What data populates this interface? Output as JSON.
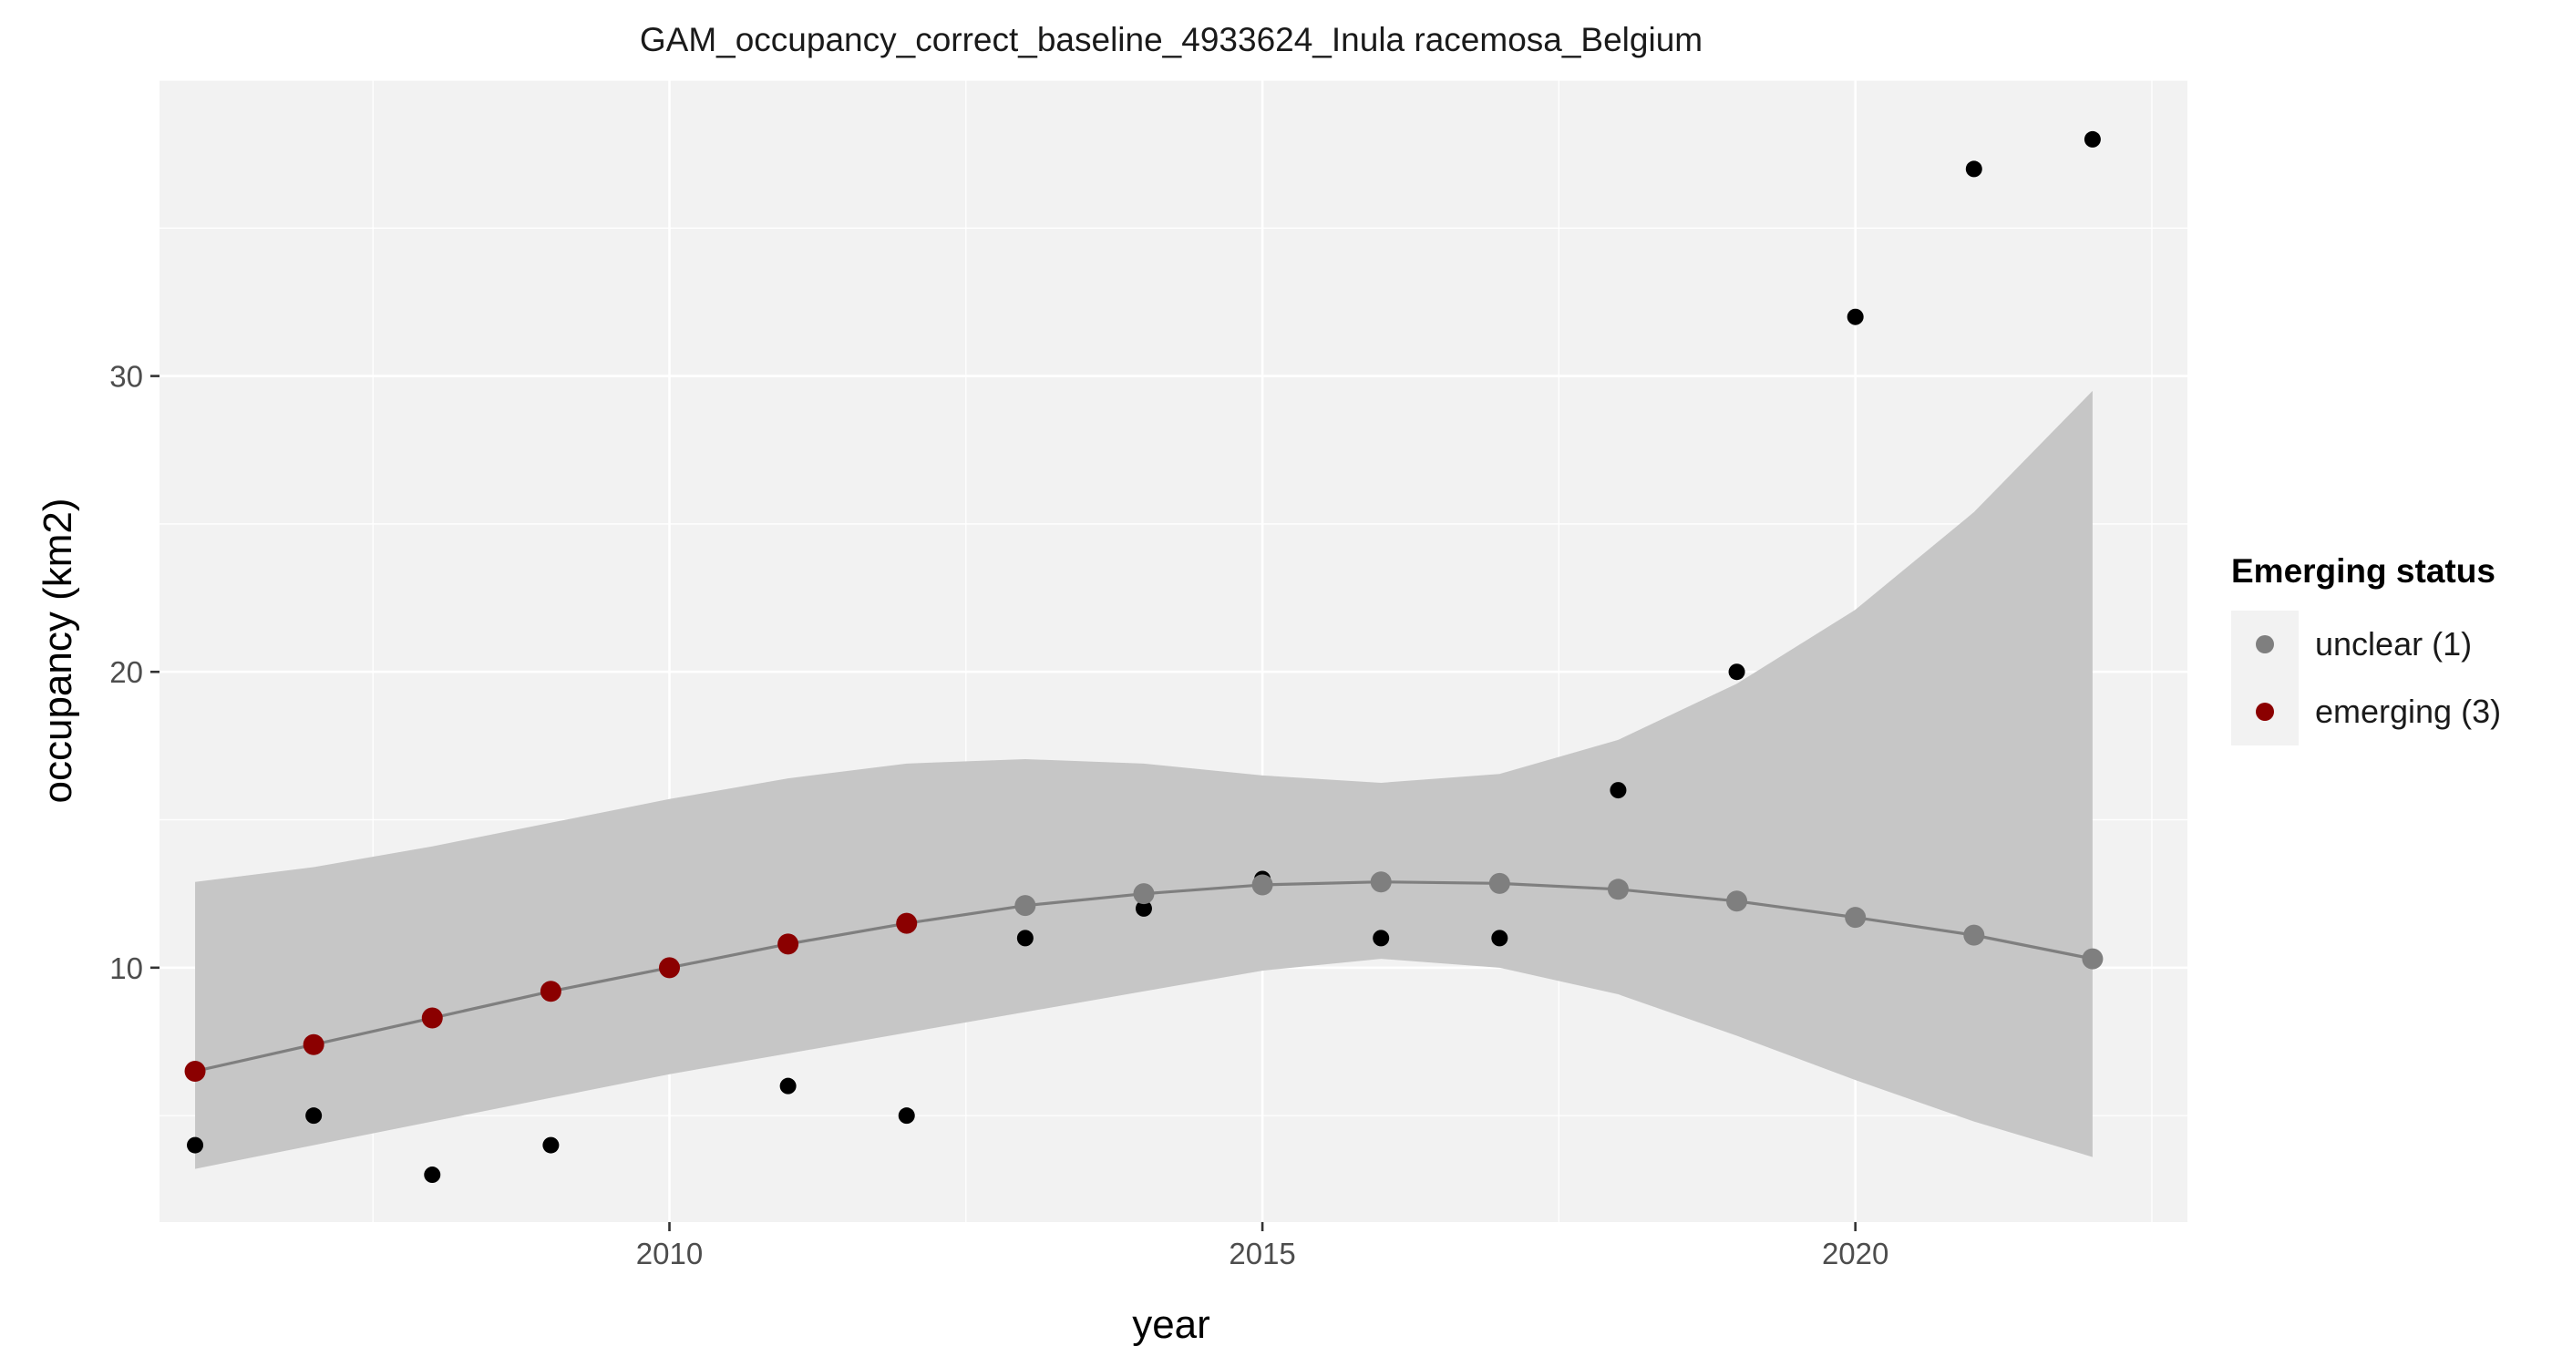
{
  "chart_data": {
    "type": "scatter",
    "title": "GAM_occupancy_correct_baseline_4933624_Inula racemosa_Belgium",
    "xlabel": "year",
    "ylabel": "occupancy (km2)",
    "xlim": [
      2005.7,
      2022.8
    ],
    "ylim": [
      1.4,
      40.0
    ],
    "x_ticks": [
      2010,
      2015,
      2020
    ],
    "x_tick_labels": [
      "2010",
      "2015",
      "2020"
    ],
    "y_ticks": [
      10,
      20,
      30
    ],
    "y_tick_labels": [
      "10",
      "20",
      "30"
    ],
    "grid": true,
    "panel_background": "#f2f2f2",
    "observed": {
      "color": "#000000",
      "x": [
        2006,
        2007,
        2008,
        2009,
        2011,
        2012,
        2013,
        2014,
        2015,
        2016,
        2017,
        2018,
        2019,
        2020,
        2021,
        2022
      ],
      "y": [
        4,
        5,
        3,
        4,
        6,
        5,
        11,
        12,
        13,
        11,
        11,
        16,
        20,
        32,
        37,
        38
      ]
    },
    "gam_fit": {
      "line_color": "#7f7f7f",
      "ribbon_color": "#c6c6c6",
      "x": [
        2006,
        2007,
        2008,
        2009,
        2010,
        2011,
        2012,
        2013,
        2014,
        2015,
        2016,
        2017,
        2018,
        2019,
        2020,
        2021,
        2022
      ],
      "y": [
        6.5,
        7.4,
        8.3,
        9.2,
        10.0,
        10.8,
        11.5,
        12.1,
        12.5,
        12.8,
        12.9,
        12.85,
        12.65,
        12.25,
        11.7,
        11.1,
        10.3
      ],
      "lower": [
        3.2,
        4.0,
        4.8,
        5.6,
        6.4,
        7.1,
        7.8,
        8.5,
        9.2,
        9.9,
        10.3,
        10.0,
        9.1,
        7.7,
        6.2,
        4.8,
        3.6
      ],
      "upper": [
        12.9,
        13.4,
        14.1,
        14.9,
        15.7,
        16.4,
        16.9,
        17.05,
        16.9,
        16.5,
        16.25,
        16.55,
        17.7,
        19.6,
        22.1,
        25.4,
        29.5
      ],
      "status": [
        "emerging",
        "emerging",
        "emerging",
        "emerging",
        "emerging",
        "emerging",
        "emerging",
        "unclear",
        "unclear",
        "unclear",
        "unclear",
        "unclear",
        "unclear",
        "unclear",
        "unclear",
        "unclear",
        "unclear"
      ]
    },
    "legend": {
      "title": "Emerging status",
      "position": "right",
      "items": [
        {
          "key": "unclear",
          "label": "unclear (1)",
          "color": "#7f7f7f"
        },
        {
          "key": "emerging",
          "label": "emerging (3)",
          "color": "#8b0000"
        }
      ]
    }
  }
}
